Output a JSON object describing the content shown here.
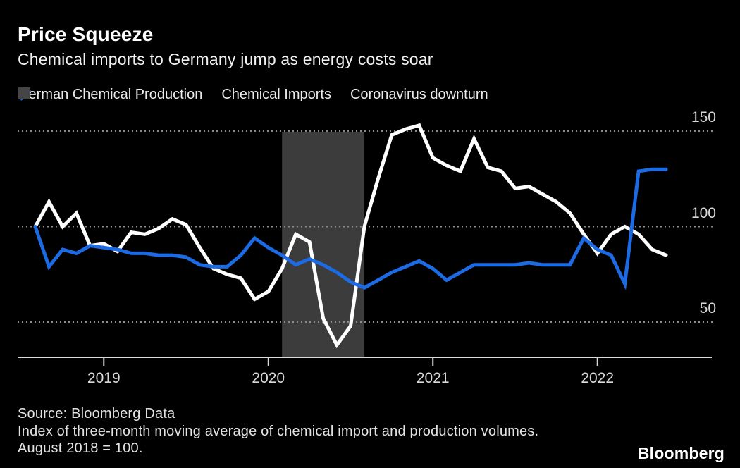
{
  "header": {
    "title": "Price Squeeze",
    "subtitle": "Chemical imports to Germany jump as energy costs soar"
  },
  "legend": {
    "items": [
      {
        "label": "German Chemical Production",
        "icon": "white-slash-icon",
        "color": "#ffffff"
      },
      {
        "label": "Chemical Imports",
        "icon": "blue-slash-icon",
        "color": "#1c6ae4"
      },
      {
        "label": "Coronavirus downturn",
        "icon": "gray-square-icon",
        "color": "#454545"
      }
    ]
  },
  "chart_data": {
    "type": "line",
    "title": "Price Squeeze",
    "subtitle": "Chemical imports to Germany jump as energy costs soar",
    "xlabel": "",
    "ylabel": "Index, August 2018 = 100",
    "ylim": [
      25,
      160
    ],
    "y_ticks": [
      150,
      100,
      50
    ],
    "x_tick_labels": [
      "2019",
      "2020",
      "2021",
      "2022"
    ],
    "grid": "dotted-horizontal",
    "legend_position": "top",
    "months": [
      "Aug 2018",
      "Sep 2018",
      "Oct 2018",
      "Nov 2018",
      "Dec 2018",
      "Jan 2019",
      "Feb 2019",
      "Mar 2019",
      "Apr 2019",
      "May 2019",
      "Jun 2019",
      "Jul 2019",
      "Aug 2019",
      "Sep 2019",
      "Oct 2019",
      "Nov 2019",
      "Dec 2019",
      "Jan 2020",
      "Feb 2020",
      "Mar 2020",
      "Apr 2020",
      "May 2020",
      "Jun 2020",
      "Jul 2020",
      "Aug 2020",
      "Sep 2020",
      "Oct 2020",
      "Nov 2020",
      "Dec 2020",
      "Jan 2021",
      "Feb 2021",
      "Mar 2021",
      "Apr 2021",
      "May 2021",
      "Jun 2021",
      "Jul 2021",
      "Aug 2021",
      "Sep 2021",
      "Oct 2021",
      "Nov 2021",
      "Dec 2021",
      "Jan 2022",
      "Feb 2022",
      "Mar 2022",
      "Apr 2022",
      "May 2022",
      "Jun 2022"
    ],
    "series": [
      {
        "name": "German Chemical Production",
        "color": "#ffffff",
        "values": [
          100,
          113,
          100,
          107,
          90,
          91,
          87,
          97,
          96,
          99,
          104,
          101,
          89,
          78,
          75,
          73,
          62,
          66,
          78,
          96,
          92,
          52,
          38,
          48,
          100,
          125,
          148,
          151,
          153,
          136,
          132,
          129,
          146,
          131,
          129,
          120,
          121,
          117,
          113,
          107,
          96,
          86,
          96,
          100,
          96,
          88,
          85
        ]
      },
      {
        "name": "Chemical Imports",
        "color": "#1c6ae4",
        "values": [
          100,
          79,
          88,
          86,
          90,
          89,
          88,
          86,
          86,
          85,
          85,
          84,
          80,
          79,
          79,
          85,
          94,
          89,
          85,
          80,
          83,
          80,
          76,
          71,
          68,
          72,
          76,
          79,
          82,
          78,
          72,
          76,
          80,
          80,
          80,
          80,
          81,
          80,
          80,
          80,
          94,
          88,
          85,
          70,
          129,
          130,
          130
        ]
      }
    ],
    "shaded_region": {
      "label": "Coronavirus downturn",
      "from": "Feb 2020",
      "to": "Aug 2020",
      "color": "#3c3c3c"
    }
  },
  "footer": {
    "source": "Source: Bloomberg Data",
    "note_line1": "Index of three-month moving average of chemical import and production volumes.",
    "note_line2": "August 2018 = 100.",
    "brand": "Bloomberg"
  }
}
